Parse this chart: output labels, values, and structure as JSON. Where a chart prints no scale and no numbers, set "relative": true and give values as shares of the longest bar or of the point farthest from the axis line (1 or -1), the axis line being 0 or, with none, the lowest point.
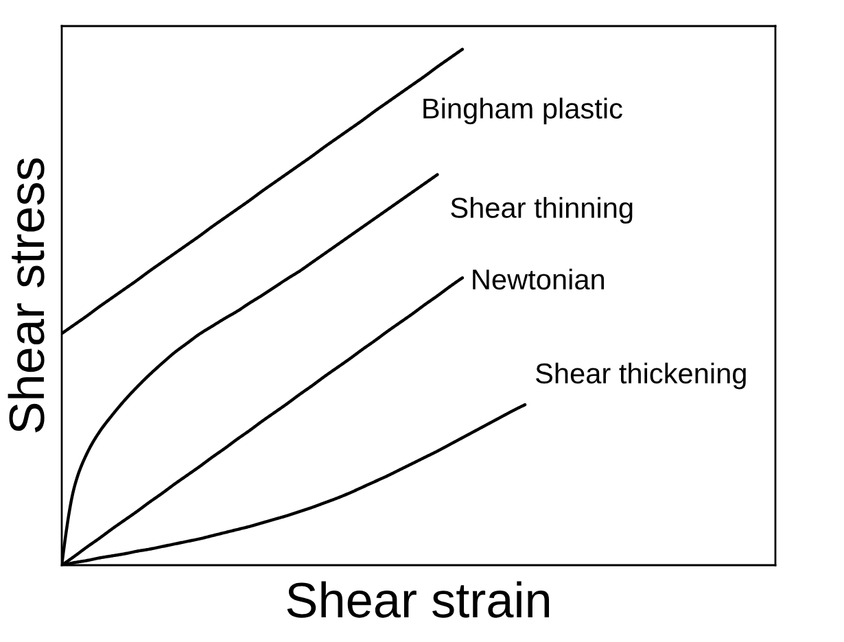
{
  "chart_data": {
    "type": "line",
    "relative": true,
    "xlabel": "Shear strain",
    "ylabel": "Shear stress",
    "line_style": "solid",
    "categories": [
      null,
      null,
      null,
      null,
      null,
      null,
      null,
      null,
      null,
      null,
      null,
      null,
      null,
      null,
      null,
      null,
      null,
      null,
      null,
      null,
      null,
      null,
      null,
      null,
      null,
      null,
      null,
      null,
      null,
      null,
      null,
      null,
      null,
      null,
      null,
      null,
      null,
      null,
      null,
      null,
      null,
      null,
      null,
      null,
      null,
      null,
      null,
      null,
      null,
      null,
      null,
      null,
      null,
      null,
      null,
      null,
      null,
      null
    ],
    "series": [
      {
        "name": "Bingham plastic",
        "color": "#000000",
        "values": [
          0.449,
          0.466,
          0.483,
          0.501,
          0.518,
          0.535,
          0.552,
          0.57,
          0.587,
          0.604,
          0.621,
          0.638,
          0.656,
          0.673,
          0.69,
          0.707,
          0.725,
          0.742,
          0.759,
          0.776,
          0.793,
          0.811,
          0.828,
          0.845,
          0.862,
          0.88,
          0.897,
          0.914,
          0.931,
          0.948,
          0.966,
          0.983,
          1.0,
          null,
          null,
          null,
          null,
          null,
          null,
          null,
          null,
          null,
          null,
          null,
          null,
          null,
          null,
          null,
          null,
          null,
          null,
          null,
          null,
          null,
          null,
          null,
          null,
          null
        ]
      },
      {
        "name": "Shear thinning",
        "color": "#000000",
        "values": [
          0,
          0.151,
          0.216,
          0.258,
          0.29,
          0.319,
          0.345,
          0.369,
          0.391,
          0.412,
          0.43,
          0.448,
          0.463,
          0.478,
          0.492,
          0.508,
          0.523,
          0.539,
          0.555,
          0.57,
          0.587,
          0.604,
          0.621,
          0.638,
          0.655,
          0.672,
          0.689,
          0.706,
          0.723,
          0.74,
          0.757,
          null,
          null,
          null,
          null,
          null,
          null,
          null,
          null,
          null,
          null,
          null,
          null,
          null,
          null,
          null,
          null,
          null,
          null,
          null,
          null,
          null,
          null,
          null,
          null,
          null,
          null,
          null
        ]
      },
      {
        "name": "Newtonian",
        "color": "#000000",
        "values": [
          0,
          0.017,
          0.035,
          0.052,
          0.07,
          0.087,
          0.104,
          0.122,
          0.139,
          0.157,
          0.174,
          0.191,
          0.209,
          0.226,
          0.244,
          0.261,
          0.279,
          0.296,
          0.313,
          0.331,
          0.348,
          0.366,
          0.383,
          0.4,
          0.418,
          0.435,
          0.453,
          0.47,
          0.487,
          0.505,
          0.522,
          0.54,
          0.557,
          null,
          null,
          null,
          null,
          null,
          null,
          null,
          null,
          null,
          null,
          null,
          null,
          null,
          null,
          null,
          null,
          null,
          null,
          null,
          null,
          null,
          null,
          null,
          null,
          null
        ]
      },
      {
        "name": "Shear thickening",
        "color": "#000000",
        "values": [
          0,
          0.005,
          0.009,
          0.014,
          0.018,
          0.022,
          0.027,
          0.031,
          0.036,
          0.041,
          0.046,
          0.051,
          0.057,
          0.063,
          0.069,
          0.075,
          0.082,
          0.089,
          0.096,
          0.104,
          0.112,
          0.121,
          0.13,
          0.14,
          0.151,
          0.162,
          0.173,
          0.185,
          0.197,
          0.209,
          0.221,
          0.234,
          0.247,
          0.26,
          0.273,
          0.286,
          0.299,
          0.311,
          null,
          null,
          null,
          null,
          null,
          null,
          null,
          null,
          null,
          null,
          null,
          null,
          null,
          null,
          null,
          null,
          null,
          null,
          null,
          null
        ]
      }
    ]
  }
}
